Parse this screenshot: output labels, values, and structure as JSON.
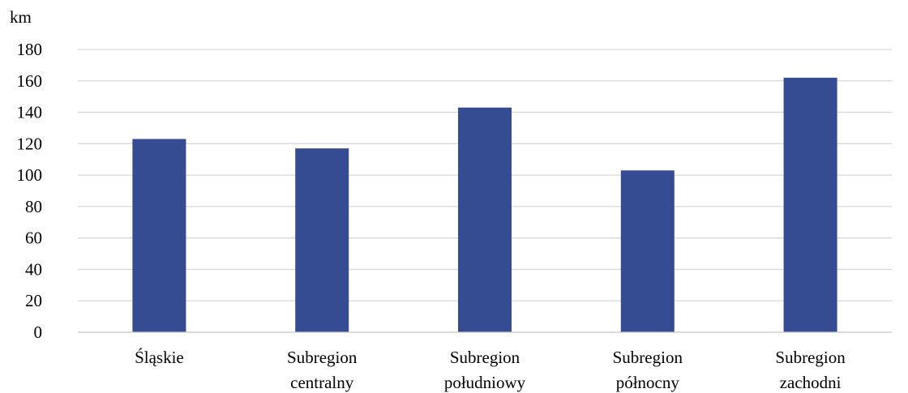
{
  "chart_data": {
    "type": "bar",
    "categories": [
      [
        "Śląskie"
      ],
      [
        "Subregion",
        "centralny"
      ],
      [
        "Subregion",
        "południowy"
      ],
      [
        "Subregion",
        "północny"
      ],
      [
        "Subregion",
        "zachodni"
      ]
    ],
    "values": [
      123,
      117,
      143,
      103,
      162
    ],
    "unit_label": "km",
    "ylim": [
      0,
      180
    ],
    "yticks": [
      0,
      20,
      40,
      60,
      80,
      100,
      120,
      140,
      160,
      180
    ],
    "grid": true,
    "legend": "none",
    "bar_color": "#354b92"
  }
}
